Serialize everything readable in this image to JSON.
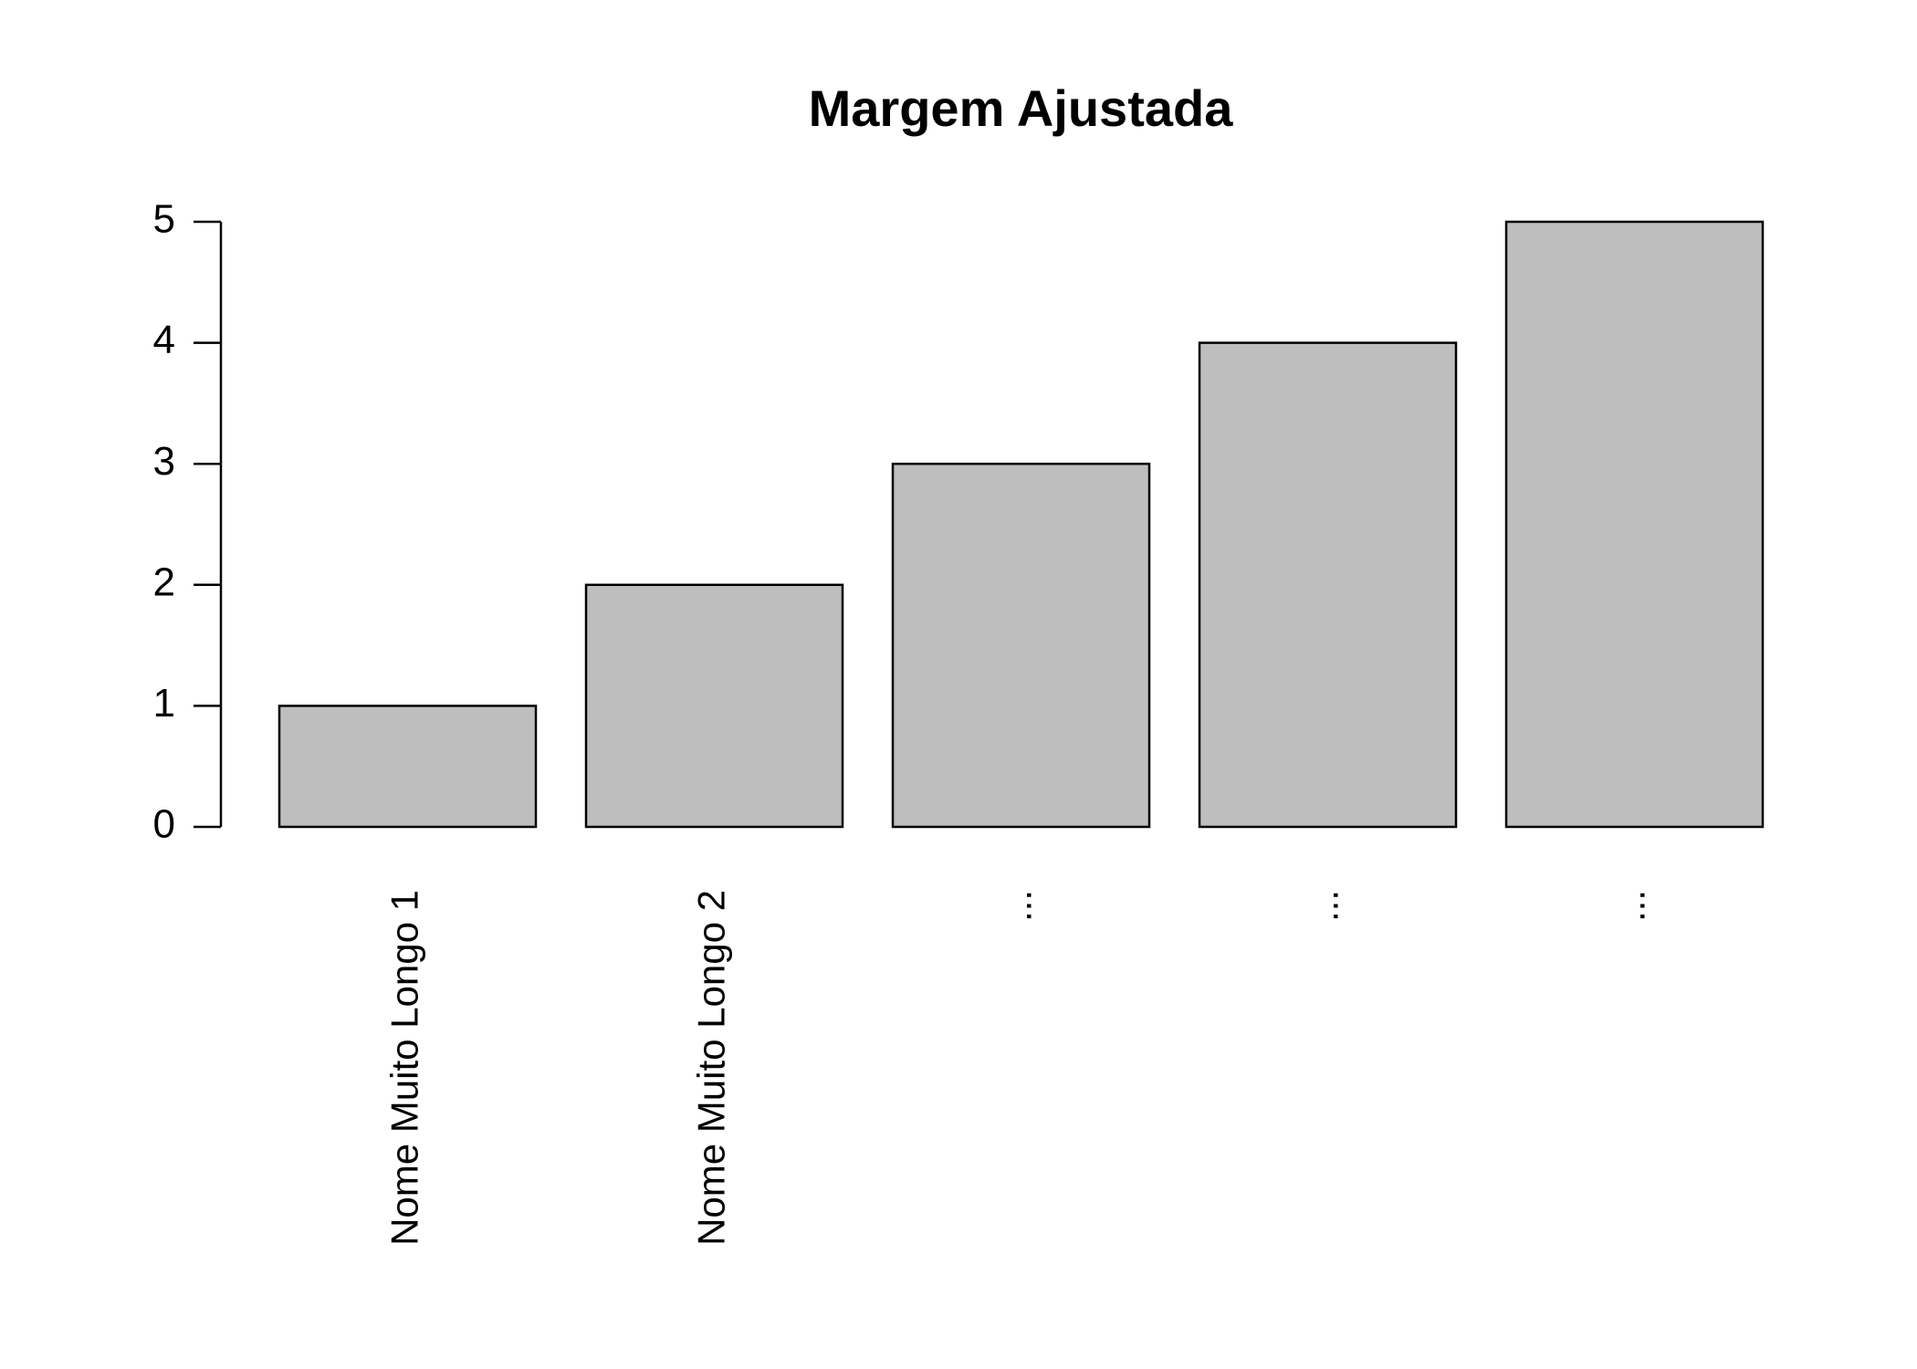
{
  "chart_data": {
    "type": "bar",
    "title": "Margem Ajustada",
    "categories": [
      "Nome Muito Longo 1",
      "Nome Muito Longo 2",
      "...",
      "...",
      "..."
    ],
    "values": [
      1,
      2,
      3,
      4,
      5
    ],
    "color": "#bebebe",
    "ylim": [
      0,
      5
    ],
    "yticks": [
      0,
      1,
      2,
      3,
      4,
      5
    ]
  }
}
